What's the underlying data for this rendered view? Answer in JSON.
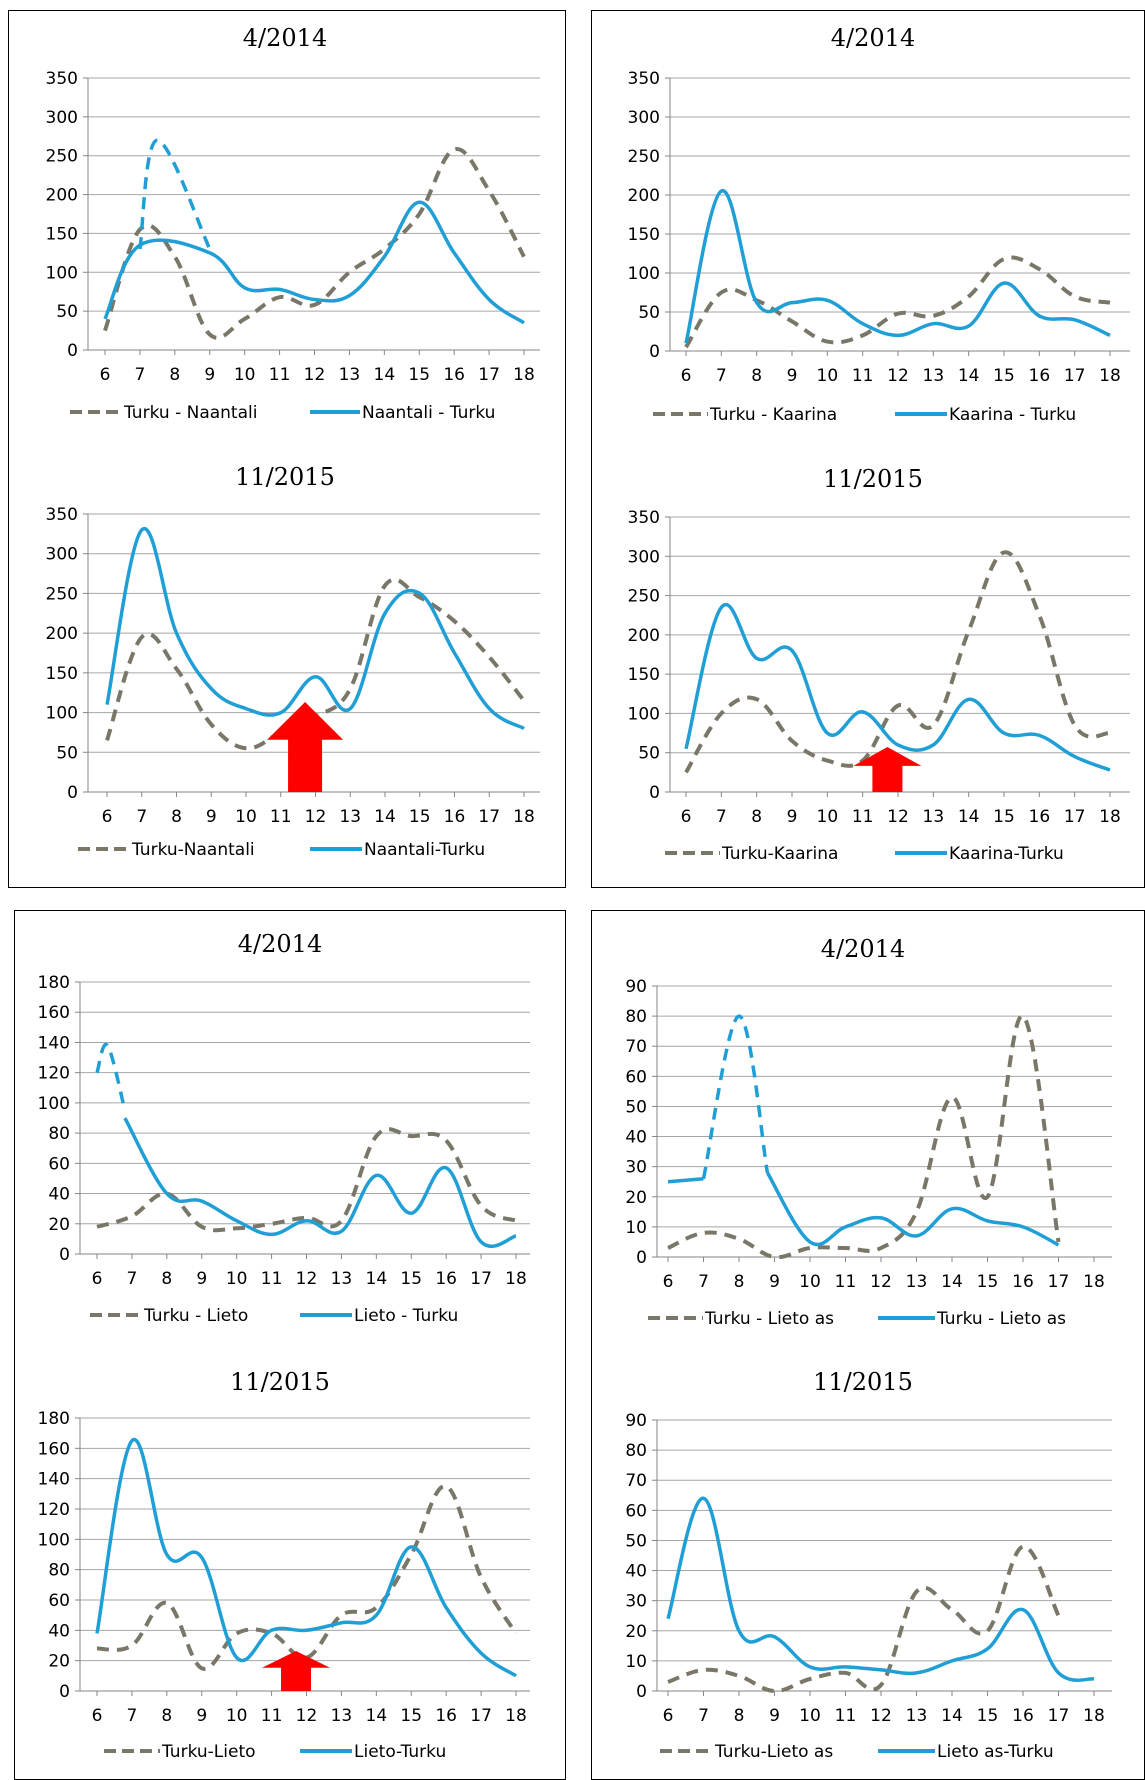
{
  "colors": {
    "series_a": "#7a7768",
    "series_b": "#1f9fd6",
    "arrow": "#ff0000",
    "grid": "#a6a6a6",
    "axis": "#868686"
  },
  "chart_data": [
    {
      "type": "line",
      "title": "4/2014",
      "x": [
        6,
        7,
        8,
        9,
        10,
        11,
        12,
        13,
        14,
        15,
        16,
        17,
        18
      ],
      "ylim": [
        0,
        350
      ],
      "yticks": [
        0,
        50,
        100,
        150,
        200,
        250,
        300,
        350
      ],
      "series": [
        {
          "name": "Turku - Naantali",
          "style": "dashed",
          "color": "series_a",
          "points": [
            [
              6,
              25
            ],
            [
              7,
              155
            ],
            [
              8,
              120
            ],
            [
              9,
              20
            ],
            [
              10,
              40
            ],
            [
              11,
              68
            ],
            [
              12,
              58
            ],
            [
              13,
              100
            ],
            [
              14,
              130
            ],
            [
              15,
              175
            ],
            [
              16,
              258
            ],
            [
              17,
              205
            ],
            [
              18,
              120
            ]
          ]
        },
        {
          "name": "Naantali - Turku",
          "style": "solid",
          "color": "series_b",
          "points": [
            [
              6,
              40
            ],
            [
              7,
              135
            ],
            [
              9,
              125
            ],
            [
              10,
              80
            ],
            [
              11,
              78
            ],
            [
              12,
              65
            ],
            [
              13,
              70
            ],
            [
              14,
              120
            ],
            [
              15,
              190
            ],
            [
              16,
              125
            ],
            [
              17,
              65
            ],
            [
              18,
              35
            ]
          ],
          "dashed_points": [
            [
              7,
              130
            ],
            [
              7.5,
              270
            ],
            [
              9,
              130
            ]
          ]
        }
      ],
      "arrow": null
    },
    {
      "type": "line",
      "title": "4/2014",
      "x": [
        6,
        7,
        8,
        9,
        10,
        11,
        12,
        13,
        14,
        15,
        16,
        17,
        18
      ],
      "ylim": [
        0,
        350
      ],
      "yticks": [
        0,
        50,
        100,
        150,
        200,
        250,
        300,
        350
      ],
      "series": [
        {
          "name": "Turku - Kaarina",
          "style": "dashed",
          "color": "series_a",
          "points": [
            [
              6,
              5
            ],
            [
              7,
              75
            ],
            [
              8,
              65
            ],
            [
              9,
              38
            ],
            [
              10,
              12
            ],
            [
              11,
              20
            ],
            [
              12,
              48
            ],
            [
              13,
              45
            ],
            [
              14,
              70
            ],
            [
              15,
              118
            ],
            [
              16,
              105
            ],
            [
              17,
              70
            ],
            [
              18,
              62
            ]
          ]
        },
        {
          "name": "Kaarina - Turku",
          "style": "solid",
          "color": "series_b",
          "points": [
            [
              6,
              10
            ],
            [
              7,
              205
            ],
            [
              8,
              62
            ],
            [
              9,
              62
            ],
            [
              10,
              65
            ],
            [
              11,
              35
            ],
            [
              12,
              20
            ],
            [
              13,
              35
            ],
            [
              14,
              32
            ],
            [
              15,
              87
            ],
            [
              16,
              45
            ],
            [
              17,
              40
            ],
            [
              18,
              20
            ]
          ]
        }
      ],
      "arrow": null
    },
    {
      "type": "line",
      "title": "11/2015",
      "x": [
        6,
        7,
        8,
        9,
        10,
        11,
        12,
        13,
        14,
        15,
        16,
        17,
        18
      ],
      "ylim": [
        0,
        350
      ],
      "yticks": [
        0,
        50,
        100,
        150,
        200,
        250,
        300,
        350
      ],
      "series": [
        {
          "name": "Turku-Naantali",
          "style": "dashed",
          "color": "series_a",
          "points": [
            [
              6,
              65
            ],
            [
              7,
              195
            ],
            [
              8,
              155
            ],
            [
              9,
              85
            ],
            [
              10,
              55
            ],
            [
              11,
              75
            ],
            [
              12,
              95
            ],
            [
              13,
              130
            ],
            [
              14,
              260
            ],
            [
              15,
              245
            ],
            [
              16,
              215
            ],
            [
              17,
              170
            ],
            [
              18,
              115
            ]
          ]
        },
        {
          "name": "Naantali-Turku",
          "style": "solid",
          "color": "series_b",
          "points": [
            [
              6,
              110
            ],
            [
              7,
              330
            ],
            [
              8,
              200
            ],
            [
              9,
              130
            ],
            [
              10,
              105
            ],
            [
              11,
              100
            ],
            [
              12,
              145
            ],
            [
              13,
              105
            ],
            [
              14,
              225
            ],
            [
              15,
              250
            ],
            [
              16,
              175
            ],
            [
              17,
              105
            ],
            [
              18,
              80
            ]
          ]
        }
      ],
      "arrow": {
        "x": 11.7
      }
    },
    {
      "type": "line",
      "title": "11/2015",
      "x": [
        6,
        7,
        8,
        9,
        10,
        11,
        12,
        13,
        14,
        15,
        16,
        17,
        18
      ],
      "ylim": [
        0,
        350
      ],
      "yticks": [
        0,
        50,
        100,
        150,
        200,
        250,
        300,
        350
      ],
      "series": [
        {
          "name": "Turku-Kaarina",
          "style": "dashed",
          "color": "series_a",
          "points": [
            [
              6,
              25
            ],
            [
              7,
              100
            ],
            [
              8,
              118
            ],
            [
              9,
              65
            ],
            [
              10,
              40
            ],
            [
              11,
              40
            ],
            [
              12,
              110
            ],
            [
              13,
              85
            ],
            [
              14,
              205
            ],
            [
              15,
              305
            ],
            [
              16,
              225
            ],
            [
              17,
              85
            ],
            [
              18,
              75
            ]
          ]
        },
        {
          "name": "Kaarina-Turku",
          "style": "solid",
          "color": "series_b",
          "points": [
            [
              6,
              55
            ],
            [
              7,
              235
            ],
            [
              8,
              170
            ],
            [
              9,
              180
            ],
            [
              10,
              75
            ],
            [
              11,
              102
            ],
            [
              12,
              60
            ],
            [
              13,
              60
            ],
            [
              14,
              118
            ],
            [
              15,
              75
            ],
            [
              16,
              72
            ],
            [
              17,
              45
            ],
            [
              18,
              28
            ]
          ]
        }
      ],
      "arrow": {
        "x": 11.7
      }
    },
    {
      "type": "line",
      "title": "4/2014",
      "x": [
        6,
        7,
        8,
        9,
        10,
        11,
        12,
        13,
        14,
        15,
        16,
        17,
        18
      ],
      "ylim": [
        0,
        180
      ],
      "yticks": [
        0,
        20,
        40,
        60,
        80,
        100,
        120,
        140,
        160,
        180
      ],
      "series": [
        {
          "name": "Turku - Lieto",
          "style": "dashed",
          "color": "series_a",
          "points": [
            [
              6,
              18
            ],
            [
              7,
              25
            ],
            [
              8,
              40
            ],
            [
              9,
              18
            ],
            [
              10,
              17
            ],
            [
              11,
              20
            ],
            [
              12,
              24
            ],
            [
              13,
              22
            ],
            [
              14,
              78
            ],
            [
              15,
              78
            ],
            [
              16,
              75
            ],
            [
              17,
              32
            ],
            [
              18,
              22
            ]
          ]
        },
        {
          "name": "Lieto - Turku",
          "style": "solid",
          "color": "series_b",
          "points": [
            [
              6.8,
              90
            ],
            [
              8,
              40
            ],
            [
              9,
              35
            ],
            [
              10,
              22
            ],
            [
              11,
              13
            ],
            [
              12,
              22
            ],
            [
              13,
              15
            ],
            [
              14,
              52
            ],
            [
              15,
              27
            ],
            [
              16,
              57
            ],
            [
              17,
              8
            ],
            [
              18,
              12
            ]
          ],
          "dashed_points": [
            [
              6,
              120
            ],
            [
              6.3,
              138
            ],
            [
              6.8,
              95
            ]
          ]
        }
      ],
      "arrow": null
    },
    {
      "type": "line",
      "title": "4/2014",
      "x": [
        6,
        7,
        8,
        9,
        10,
        11,
        12,
        13,
        14,
        15,
        16,
        17,
        18
      ],
      "ylim": [
        0,
        90
      ],
      "yticks": [
        0,
        10,
        20,
        30,
        40,
        50,
        60,
        70,
        80,
        90
      ],
      "series": [
        {
          "name": "Turku - Lieto as",
          "style": "dashed",
          "color": "series_a",
          "points": [
            [
              6,
              3
            ],
            [
              7,
              8
            ],
            [
              8,
              6
            ],
            [
              9,
              0
            ],
            [
              10,
              3
            ],
            [
              11,
              3
            ],
            [
              12,
              3
            ],
            [
              13,
              15
            ],
            [
              14,
              53
            ],
            [
              15,
              20
            ],
            [
              16,
              80
            ],
            [
              17,
              5
            ]
          ]
        },
        {
          "name": "Turku - Lieto as",
          "style": "solid",
          "color": "series_b",
          "points": [
            [
              8.8,
              28
            ],
            [
              10,
              5
            ],
            [
              11,
              10
            ],
            [
              12,
              13
            ],
            [
              13,
              7
            ],
            [
              14,
              16
            ],
            [
              15,
              12
            ],
            [
              16,
              10
            ],
            [
              17,
              4
            ]
          ],
          "prefix_points": [
            [
              6,
              25
            ],
            [
              7,
              26
            ]
          ],
          "dashed_points": [
            [
              7,
              26
            ],
            [
              8,
              80
            ],
            [
              8.8,
              28
            ]
          ]
        }
      ],
      "arrow": null
    },
    {
      "type": "line",
      "title": "11/2015",
      "x": [
        6,
        7,
        8,
        9,
        10,
        11,
        12,
        13,
        14,
        15,
        16,
        17,
        18
      ],
      "ylim": [
        0,
        180
      ],
      "yticks": [
        0,
        20,
        40,
        60,
        80,
        100,
        120,
        140,
        160,
        180
      ],
      "series": [
        {
          "name": "Turku-Lieto",
          "style": "dashed",
          "color": "series_a",
          "points": [
            [
              6,
              28
            ],
            [
              7,
              30
            ],
            [
              8,
              58
            ],
            [
              9,
              15
            ],
            [
              10,
              38
            ],
            [
              11,
              38
            ],
            [
              12,
              22
            ],
            [
              13,
              50
            ],
            [
              14,
              55
            ],
            [
              15,
              90
            ],
            [
              16,
              135
            ],
            [
              17,
              75
            ],
            [
              18,
              38
            ]
          ]
        },
        {
          "name": "Lieto-Turku",
          "style": "solid",
          "color": "series_b",
          "points": [
            [
              6,
              38
            ],
            [
              7,
              165
            ],
            [
              8,
              90
            ],
            [
              9,
              88
            ],
            [
              10,
              22
            ],
            [
              11,
              40
            ],
            [
              12,
              40
            ],
            [
              13,
              45
            ],
            [
              14,
              50
            ],
            [
              15,
              95
            ],
            [
              16,
              55
            ],
            [
              17,
              25
            ],
            [
              18,
              10
            ]
          ]
        }
      ],
      "arrow": {
        "x": 11.7
      }
    },
    {
      "type": "line",
      "title": "11/2015",
      "x": [
        6,
        7,
        8,
        9,
        10,
        11,
        12,
        13,
        14,
        15,
        16,
        17,
        18
      ],
      "ylim": [
        0,
        90
      ],
      "yticks": [
        0,
        10,
        20,
        30,
        40,
        50,
        60,
        70,
        80,
        90
      ],
      "series": [
        {
          "name": "Turku-Lieto as",
          "style": "dashed",
          "color": "series_a",
          "points": [
            [
              6,
              3
            ],
            [
              7,
              7
            ],
            [
              8,
              5
            ],
            [
              9,
              0
            ],
            [
              10,
              4
            ],
            [
              11,
              6
            ],
            [
              12,
              2
            ],
            [
              13,
              33
            ],
            [
              14,
              27
            ],
            [
              15,
              20
            ],
            [
              16,
              48
            ],
            [
              17,
              25
            ]
          ]
        },
        {
          "name": "Lieto as-Turku",
          "style": "solid",
          "color": "series_b",
          "points": [
            [
              6,
              24
            ],
            [
              7,
              64
            ],
            [
              8,
              20
            ],
            [
              9,
              18
            ],
            [
              10,
              8
            ],
            [
              11,
              8
            ],
            [
              12,
              7
            ],
            [
              13,
              6
            ],
            [
              14,
              10
            ],
            [
              15,
              14
            ],
            [
              16,
              27
            ],
            [
              17,
              6
            ],
            [
              18,
              4
            ]
          ]
        }
      ],
      "arrow": null
    }
  ]
}
